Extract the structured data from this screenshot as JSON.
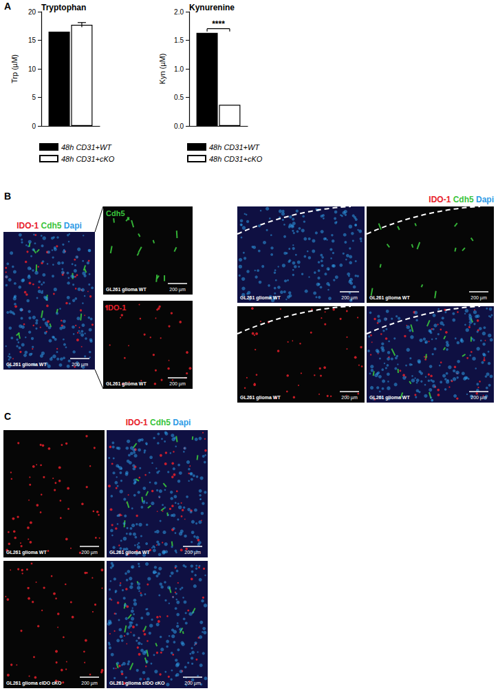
{
  "chart_data": [
    {
      "type": "bar",
      "title": "Tryptophan",
      "y_label": "Trp (µM)",
      "categories": [
        null
      ],
      "series": [
        {
          "name": "48h CD31+WT",
          "color": "#000000",
          "values": [
            16.5
          ]
        },
        {
          "name": "48h CD31+cKO",
          "color": "#ffffff",
          "values": [
            17.7
          ],
          "errors": [
            0.4
          ]
        }
      ],
      "ylim": [
        0,
        20
      ],
      "yticks": [
        0,
        5,
        10,
        15,
        20
      ],
      "grid": false,
      "legend": "bottom"
    },
    {
      "type": "bar",
      "title": "Kynurenine",
      "y_label": "Kyn (µM)",
      "categories": [
        null
      ],
      "series": [
        {
          "name": "48h CD31+WT",
          "color": "#000000",
          "values": [
            1.63
          ]
        },
        {
          "name": "48h CD31+cKO",
          "color": "#ffffff",
          "values": [
            0.37
          ]
        }
      ],
      "ylim": [
        0,
        2
      ],
      "yticks": [
        {
          "value": 0,
          "label": "0.0"
        },
        {
          "value": 0.5,
          "label": "0.5"
        },
        {
          "value": 1,
          "label": "1.0"
        },
        {
          "value": 1.5,
          "label": "1.5"
        },
        {
          "value": 2,
          "label": "2.0"
        }
      ],
      "grid": false,
      "legend": "bottom",
      "annotations": [
        {
          "text": "****",
          "between": [
            "48h CD31+WT",
            "48h CD31+cKO"
          ]
        }
      ]
    }
  ],
  "panel_labels": [
    "A",
    "B",
    "C"
  ],
  "stains": [
    {
      "name": "IDO-1",
      "color": "#e8202a"
    },
    {
      "name": "Cdh5",
      "color": "#39c43c"
    },
    {
      "name": "Dapi",
      "color": "#2e9be6"
    }
  ],
  "panel_B": {
    "scale_bar": "200 µm",
    "overview": {
      "caption": "GL261 glioma WT",
      "channels": [
        "IDO-1",
        "Cdh5",
        "Dapi"
      ]
    },
    "zoom": [
      {
        "channel_label": "Cdh5",
        "caption": "GL261 glioma WT",
        "channels": [
          "Cdh5"
        ]
      },
      {
        "channel_label": "IDO-1",
        "caption": "GL261 glioma WT",
        "channels": [
          "IDO-1"
        ]
      }
    ],
    "tiles": [
      {
        "caption": "GL261 glioma WT",
        "channels": [
          "Dapi"
        ]
      },
      {
        "caption": "GL261 glioma WT",
        "channels": [
          "Cdh5"
        ]
      },
      {
        "caption": "GL261 glioma WT",
        "channels": [
          "IDO-1"
        ]
      },
      {
        "caption": "GL261 glioma WT",
        "channels": [
          "IDO-1",
          "Cdh5",
          "Dapi"
        ]
      }
    ]
  },
  "panel_C": {
    "scale_bar": "200 µm",
    "tiles": [
      {
        "caption": "GL261 glioma WT",
        "channels": [
          "IDO-1"
        ]
      },
      {
        "caption": "GL261 glioma WT",
        "channels": [
          "IDO-1",
          "Cdh5",
          "Dapi"
        ]
      },
      {
        "caption": "GL261 glioma eIDO cKO",
        "channels": [
          "IDO-1"
        ]
      },
      {
        "caption": "GL261 glioma eIDO cKO",
        "channels": [
          "IDO-1",
          "Cdh5",
          "Dapi"
        ]
      }
    ]
  }
}
